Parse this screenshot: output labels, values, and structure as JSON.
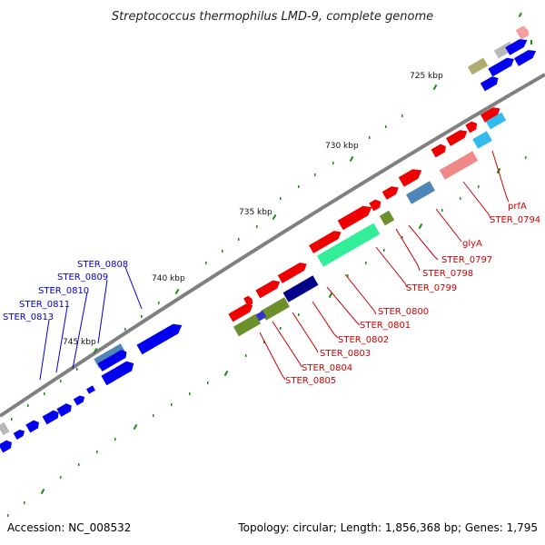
{
  "title": "Streptococcus thermophilus LMD-9, complete genome",
  "footer": {
    "accession": "Accession: NC_008532",
    "topology": "Topology: circular; Length: 1,856,368 bp; Genes: 1,795"
  },
  "scale_labels": [
    "725 kbp",
    "730 kbp",
    "735 kbp",
    "740 kbp",
    "745 kbp"
  ],
  "gene_labels_red": [
    "prfA",
    "STER_0794",
    "glyA",
    "STER_0797",
    "STER_0798",
    "STER_0799",
    "STER_0800",
    "STER_0801",
    "STER_0802",
    "STER_0803",
    "STER_0804",
    "STER_0805"
  ],
  "gene_labels_blue": [
    "STER_0808",
    "STER_0809",
    "STER_0810",
    "STER_0811",
    "STER_0813"
  ],
  "colors": {
    "forward_strand": "#ff0000",
    "reverse_strand": "#0000ff",
    "backbone": "#888888",
    "tick": "#008000"
  }
}
